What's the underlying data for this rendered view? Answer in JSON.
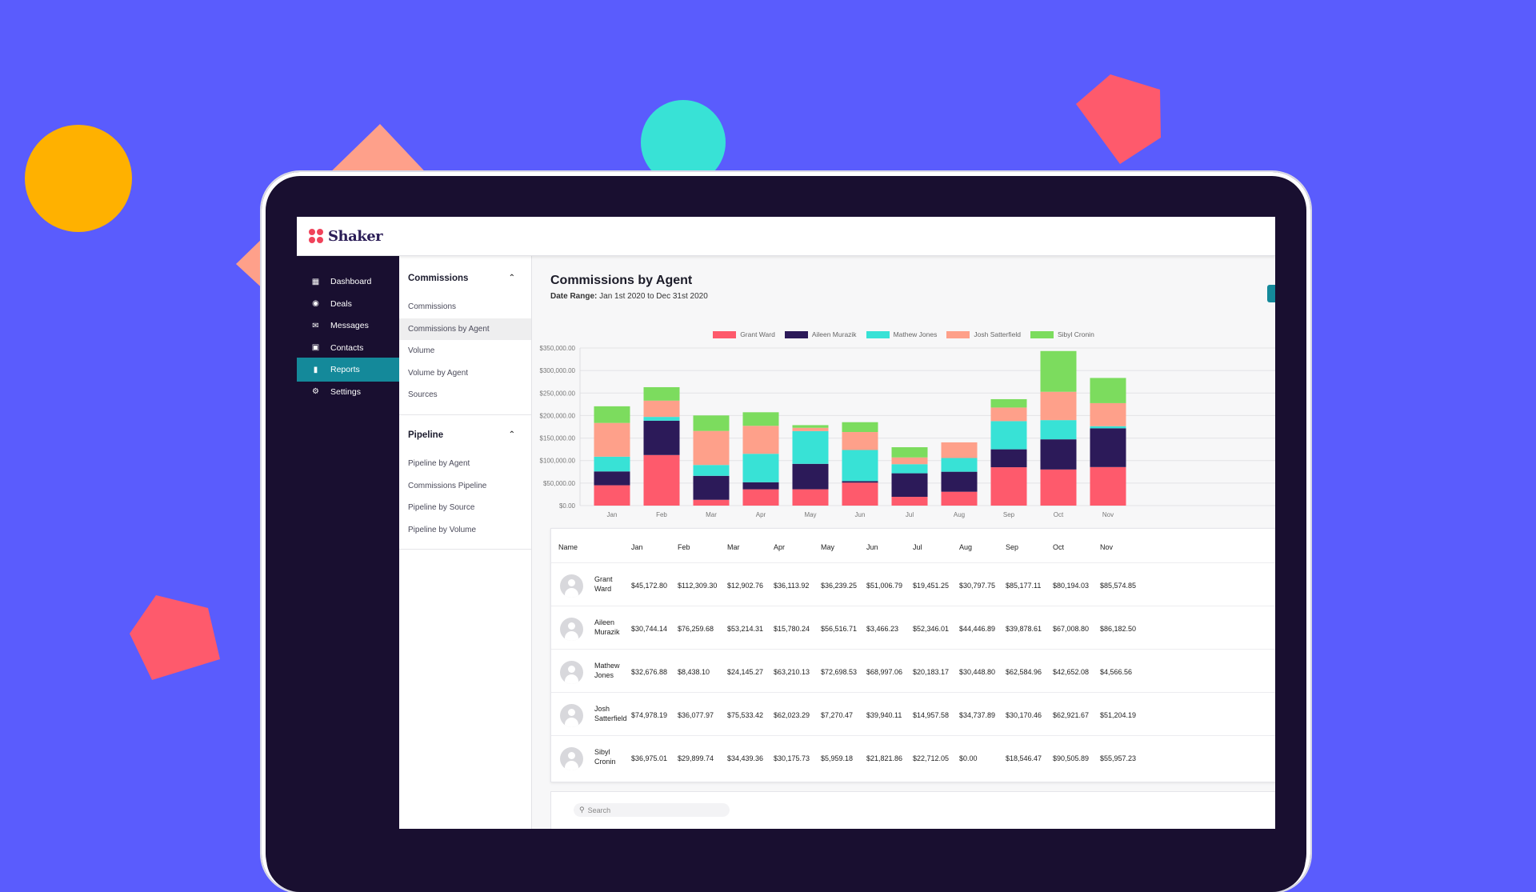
{
  "app": {
    "name": "Shaker"
  },
  "sidebar": {
    "items": [
      {
        "label": "Dashboard",
        "icon": "dashboard-icon",
        "active": false
      },
      {
        "label": "Deals",
        "icon": "deals-icon",
        "active": false
      },
      {
        "label": "Messages",
        "icon": "messages-icon",
        "active": false
      },
      {
        "label": "Contacts",
        "icon": "contacts-icon",
        "active": false
      },
      {
        "label": "Reports",
        "icon": "reports-icon",
        "active": true
      },
      {
        "label": "Settings",
        "icon": "settings-icon",
        "active": false
      }
    ]
  },
  "subnav": {
    "sections": [
      {
        "title": "Commissions",
        "items": [
          "Commissions",
          "Commissions by Agent",
          "Volume",
          "Volume by Agent",
          "Sources"
        ],
        "selected": "Commissions by Agent"
      },
      {
        "title": "Pipeline",
        "items": [
          "Pipeline by Agent",
          "Commissions Pipeline",
          "Pipeline by Source",
          "Pipeline by Volume"
        ]
      }
    ]
  },
  "report": {
    "title": "Commissions by Agent",
    "date_range_label": "Date Range:",
    "date_range_value": "Jan 1st 2020 to Dec 31st 2020"
  },
  "colors": {
    "accent": "#14899a",
    "sidebar": "#190f30",
    "background": "#5a5cfd"
  },
  "chart_data": {
    "type": "bar",
    "stacked": true,
    "categories": [
      "Jan",
      "Feb",
      "Mar",
      "Apr",
      "May",
      "Jun",
      "Jul",
      "Aug",
      "Sep",
      "Oct",
      "Nov"
    ],
    "series": [
      {
        "name": "Grant Ward",
        "color": "#fe5a6c",
        "values": [
          45172.8,
          112309.3,
          12902.76,
          36113.92,
          36239.25,
          51006.79,
          19451.25,
          30797.75,
          85177.11,
          80194.03,
          85574.85
        ]
      },
      {
        "name": "Aileen Murazik",
        "color": "#2c1a59",
        "values": [
          30744.14,
          76259.68,
          53214.31,
          15780.24,
          56516.71,
          3466.23,
          52346.01,
          44446.89,
          39878.61,
          67008.8,
          86182.5
        ]
      },
      {
        "name": "Mathew Jones",
        "color": "#38e2d6",
        "values": [
          32676.88,
          8438.1,
          24145.27,
          63210.13,
          72698.53,
          68997.06,
          20183.17,
          30448.8,
          62584.96,
          42652.08,
          4566.56
        ]
      },
      {
        "name": "Josh Satterfield",
        "color": "#fea08a",
        "values": [
          74978.19,
          36077.97,
          75533.42,
          62023.29,
          7270.47,
          39940.11,
          14957.58,
          34737.89,
          30170.46,
          62921.67,
          51204.19
        ]
      },
      {
        "name": "Sibyl Cronin",
        "color": "#7cdc5e",
        "values": [
          36975.01,
          29899.74,
          34439.36,
          30175.73,
          5959.18,
          21821.86,
          22712.05,
          0.0,
          18546.47,
          90505.89,
          55957.23
        ]
      }
    ],
    "yticks": [
      "$0.00",
      "$50,000.00",
      "$100,000.00",
      "$150,000.00",
      "$200,000.00",
      "$250,000.00",
      "$300,000.00",
      "$350,000.00"
    ],
    "ylim": [
      0,
      350000
    ],
    "legend": "top-center",
    "grid": true
  },
  "table": {
    "headers": [
      "Name",
      "Jan",
      "Feb",
      "Mar",
      "Apr",
      "May",
      "Jun",
      "Jul",
      "Aug",
      "Sep",
      "Oct",
      "Nov"
    ],
    "rows": [
      {
        "first": "Grant",
        "last": "Ward",
        "values": [
          "$45,172.80",
          "$112,309.30",
          "$12,902.76",
          "$36,113.92",
          "$36,239.25",
          "$51,006.79",
          "$19,451.25",
          "$30,797.75",
          "$85,177.11",
          "$80,194.03",
          "$85,574.85"
        ]
      },
      {
        "first": "Aileen",
        "last": "Murazik",
        "values": [
          "$30,744.14",
          "$76,259.68",
          "$53,214.31",
          "$15,780.24",
          "$56,516.71",
          "$3,466.23",
          "$52,346.01",
          "$44,446.89",
          "$39,878.61",
          "$67,008.80",
          "$86,182.50"
        ]
      },
      {
        "first": "Mathew",
        "last": "Jones",
        "values": [
          "$32,676.88",
          "$8,438.10",
          "$24,145.27",
          "$63,210.13",
          "$72,698.53",
          "$68,997.06",
          "$20,183.17",
          "$30,448.80",
          "$62,584.96",
          "$42,652.08",
          "$4,566.56"
        ]
      },
      {
        "first": "Josh",
        "last": "Satterfield",
        "values": [
          "$74,978.19",
          "$36,077.97",
          "$75,533.42",
          "$62,023.29",
          "$7,270.47",
          "$39,940.11",
          "$14,957.58",
          "$34,737.89",
          "$30,170.46",
          "$62,921.67",
          "$51,204.19"
        ]
      },
      {
        "first": "Sibyl",
        "last": "Cronin",
        "values": [
          "$36,975.01",
          "$29,899.74",
          "$34,439.36",
          "$30,175.73",
          "$5,959.18",
          "$21,821.86",
          "$22,712.05",
          "$0.00",
          "$18,546.47",
          "$90,505.89",
          "$55,957.23"
        ]
      }
    ]
  },
  "search": {
    "placeholder": "Search"
  }
}
